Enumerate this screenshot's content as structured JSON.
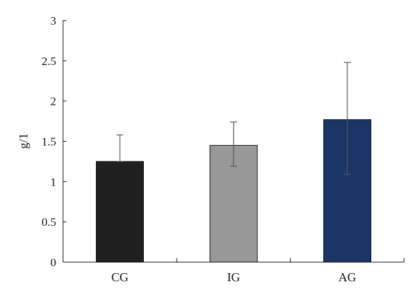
{
  "chart_data": {
    "type": "bar",
    "categories": [
      "CG",
      "IG",
      "AG"
    ],
    "values": [
      1.25,
      1.45,
      1.77
    ],
    "error": [
      {
        "upper": 1.58,
        "lower": 1.25
      },
      {
        "upper": 1.74,
        "lower": 1.19
      },
      {
        "upper": 2.48,
        "lower": 1.09
      }
    ],
    "colors": [
      "#1f1f1f",
      "#999999",
      "#1a3566"
    ],
    "title": "",
    "xlabel": "",
    "ylabel": "g/1",
    "ylim": [
      0,
      3
    ],
    "yticks": [
      0,
      0.5,
      1,
      1.5,
      2,
      2.5,
      3
    ],
    "ytick_labels": [
      "0",
      "0.5",
      "1",
      "1.5",
      "2",
      "2.5",
      "3"
    ],
    "grid": false,
    "legend": "none"
  }
}
